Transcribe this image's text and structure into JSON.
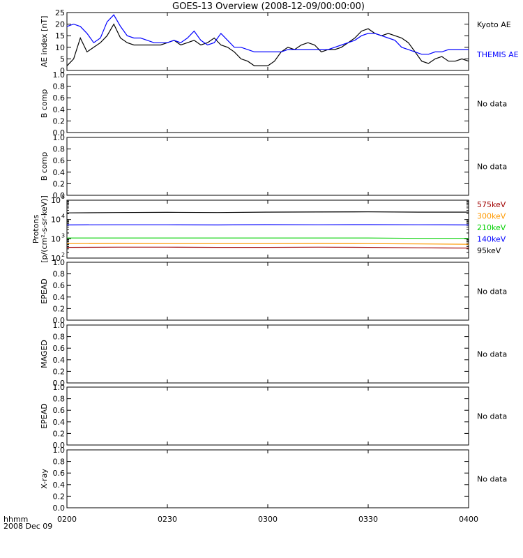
{
  "title": "GOES-13 Overview (2008-12-09/00:00:00)",
  "x_axis": {
    "ticks": [
      "0200",
      "0230",
      "0300",
      "0330",
      "0400"
    ],
    "caption_line1": "hhmm",
    "caption_line2": "2008 Dec 09"
  },
  "chart_data": [
    {
      "type": "line",
      "panel": "AE index",
      "ylabel": "AE index [nT]",
      "ylim": [
        0,
        25
      ],
      "yticks": [
        "0",
        "5",
        "10",
        "15",
        "20",
        "25"
      ],
      "x_unit": "minutes after 02:00 UT",
      "legend": [
        "Kyoto AE",
        "THEMIS AE"
      ],
      "series": [
        {
          "name": "Kyoto AE",
          "color": "#000000",
          "x": [
            0,
            2,
            4,
            6,
            8,
            10,
            12,
            14,
            16,
            18,
            20,
            22,
            24,
            26,
            28,
            30,
            32,
            34,
            36,
            38,
            40,
            42,
            44,
            46,
            48,
            50,
            52,
            54,
            56,
            58,
            60,
            62,
            64,
            66,
            68,
            70,
            72,
            74,
            76,
            78,
            80,
            82,
            84,
            86,
            88,
            90,
            92,
            94,
            96,
            98,
            100,
            102,
            104,
            106,
            108,
            110,
            112,
            114,
            116,
            118,
            120
          ],
          "y": [
            2,
            5,
            14,
            8,
            10,
            12,
            15,
            20,
            14,
            12,
            11,
            11,
            11,
            11,
            11,
            12,
            13,
            11,
            12,
            13,
            11,
            12,
            14,
            11,
            10,
            8,
            5,
            4,
            2,
            2,
            2,
            4,
            8,
            10,
            9,
            11,
            12,
            11,
            8,
            9,
            9,
            10,
            12,
            14,
            17,
            18,
            16,
            15,
            16,
            15,
            14,
            12,
            8,
            4,
            3,
            5,
            6,
            4,
            4,
            5,
            4
          ]
        },
        {
          "name": "THEMIS AE",
          "color": "#0000ff",
          "x": [
            0,
            2,
            4,
            6,
            8,
            10,
            12,
            14,
            16,
            18,
            20,
            22,
            24,
            26,
            28,
            30,
            32,
            34,
            36,
            38,
            40,
            42,
            44,
            46,
            48,
            50,
            52,
            54,
            56,
            58,
            60,
            62,
            64,
            66,
            68,
            70,
            72,
            74,
            76,
            78,
            80,
            82,
            84,
            86,
            88,
            90,
            92,
            94,
            96,
            98,
            100,
            102,
            104,
            106,
            108,
            110,
            112,
            114,
            116,
            118,
            120
          ],
          "y": [
            19,
            20,
            19,
            16,
            12,
            14,
            21,
            24,
            19,
            15,
            14,
            14,
            13,
            12,
            12,
            12,
            13,
            12,
            14,
            17,
            13,
            11,
            12,
            16,
            13,
            10,
            10,
            9,
            8,
            8,
            8,
            8,
            8,
            9,
            9,
            9,
            9,
            9,
            9,
            9,
            10,
            11,
            12,
            13,
            15,
            16,
            16,
            15,
            14,
            13,
            10,
            9,
            8,
            7,
            7,
            8,
            8,
            9,
            9,
            9,
            9
          ]
        }
      ]
    },
    {
      "type": "line",
      "panel": "B comp",
      "ylabel": "B comp",
      "ylim": [
        0,
        1.0
      ],
      "yticks": [
        "0.0",
        "0.2",
        "0.4",
        "0.6",
        "0.8",
        "1.0"
      ],
      "note": "No data",
      "series": []
    },
    {
      "type": "line",
      "panel": "B comp",
      "ylabel": "B comp",
      "ylim": [
        0,
        1.0
      ],
      "yticks": [
        "0.0",
        "0.2",
        "0.4",
        "0.6",
        "0.8",
        "1.0"
      ],
      "note": "No data",
      "series": []
    },
    {
      "type": "line",
      "panel": "Protons",
      "ylabel_line1": "Protons",
      "ylabel_line2": "[p/(cm²-s-sr-keV)]",
      "yscale": "log",
      "ylim": [
        100,
        100000
      ],
      "ytick_values": [
        100,
        1000,
        10000,
        100000
      ],
      "yticks": [
        {
          "base": "10",
          "exp": "2"
        },
        {
          "base": "10",
          "exp": "3"
        },
        {
          "base": "10",
          "exp": "4"
        },
        {
          "base": "10",
          "exp": "5"
        }
      ],
      "legend": [
        "575keV",
        "300keV",
        "210keV",
        "140keV",
        "95keV"
      ],
      "series": [
        {
          "name": "95keV",
          "color": "#000000",
          "x": [
            0,
            15,
            30,
            45,
            60,
            75,
            90,
            105,
            120
          ],
          "y": [
            22000,
            23000,
            23500,
            23000,
            24000,
            24500,
            25000,
            24000,
            24000
          ]
        },
        {
          "name": "140keV",
          "color": "#0000ff",
          "x": [
            0,
            15,
            30,
            45,
            60,
            75,
            90,
            105,
            120
          ],
          "y": [
            5200,
            5300,
            5300,
            5200,
            5400,
            5300,
            5400,
            5300,
            5200
          ]
        },
        {
          "name": "210keV",
          "color": "#00d000",
          "x": [
            0,
            15,
            30,
            45,
            60,
            75,
            90,
            105,
            120
          ],
          "y": [
            1100,
            1100,
            1100,
            1100,
            1100,
            1100,
            1100,
            1050,
            1050
          ]
        },
        {
          "name": "300keV",
          "color": "#ff9900",
          "x": [
            0,
            15,
            30,
            45,
            60,
            75,
            90,
            105,
            120
          ],
          "y": [
            560,
            570,
            560,
            560,
            560,
            570,
            560,
            540,
            520
          ]
        },
        {
          "name": "575keV",
          "color": "#a00000",
          "x": [
            0,
            15,
            30,
            45,
            60,
            75,
            90,
            105,
            120
          ],
          "y": [
            360,
            370,
            370,
            360,
            360,
            370,
            360,
            340,
            330
          ]
        }
      ]
    },
    {
      "type": "line",
      "panel": "EPEAD",
      "ylabel": "EPEAD",
      "ylim": [
        0,
        1.0
      ],
      "yticks": [
        "0.0",
        "0.2",
        "0.4",
        "0.6",
        "0.8",
        "1.0"
      ],
      "note": "No data",
      "series": []
    },
    {
      "type": "line",
      "panel": "MAGED",
      "ylabel": "MAGED",
      "ylim": [
        0,
        1.0
      ],
      "yticks": [
        "0.0",
        "0.2",
        "0.4",
        "0.6",
        "0.8",
        "1.0"
      ],
      "note": "No data",
      "series": []
    },
    {
      "type": "line",
      "panel": "EPEAD",
      "ylabel": "EPEAD",
      "ylim": [
        0,
        1.0
      ],
      "yticks": [
        "0.0",
        "0.2",
        "0.4",
        "0.6",
        "0.8",
        "1.0"
      ],
      "note": "No data",
      "series": []
    },
    {
      "type": "line",
      "panel": "X-ray",
      "ylabel": "X-ray",
      "ylim": [
        0,
        1.0
      ],
      "yticks": [
        "0.0",
        "0.2",
        "0.4",
        "0.6",
        "0.8",
        "1.0"
      ],
      "note": "No data",
      "series": []
    }
  ]
}
